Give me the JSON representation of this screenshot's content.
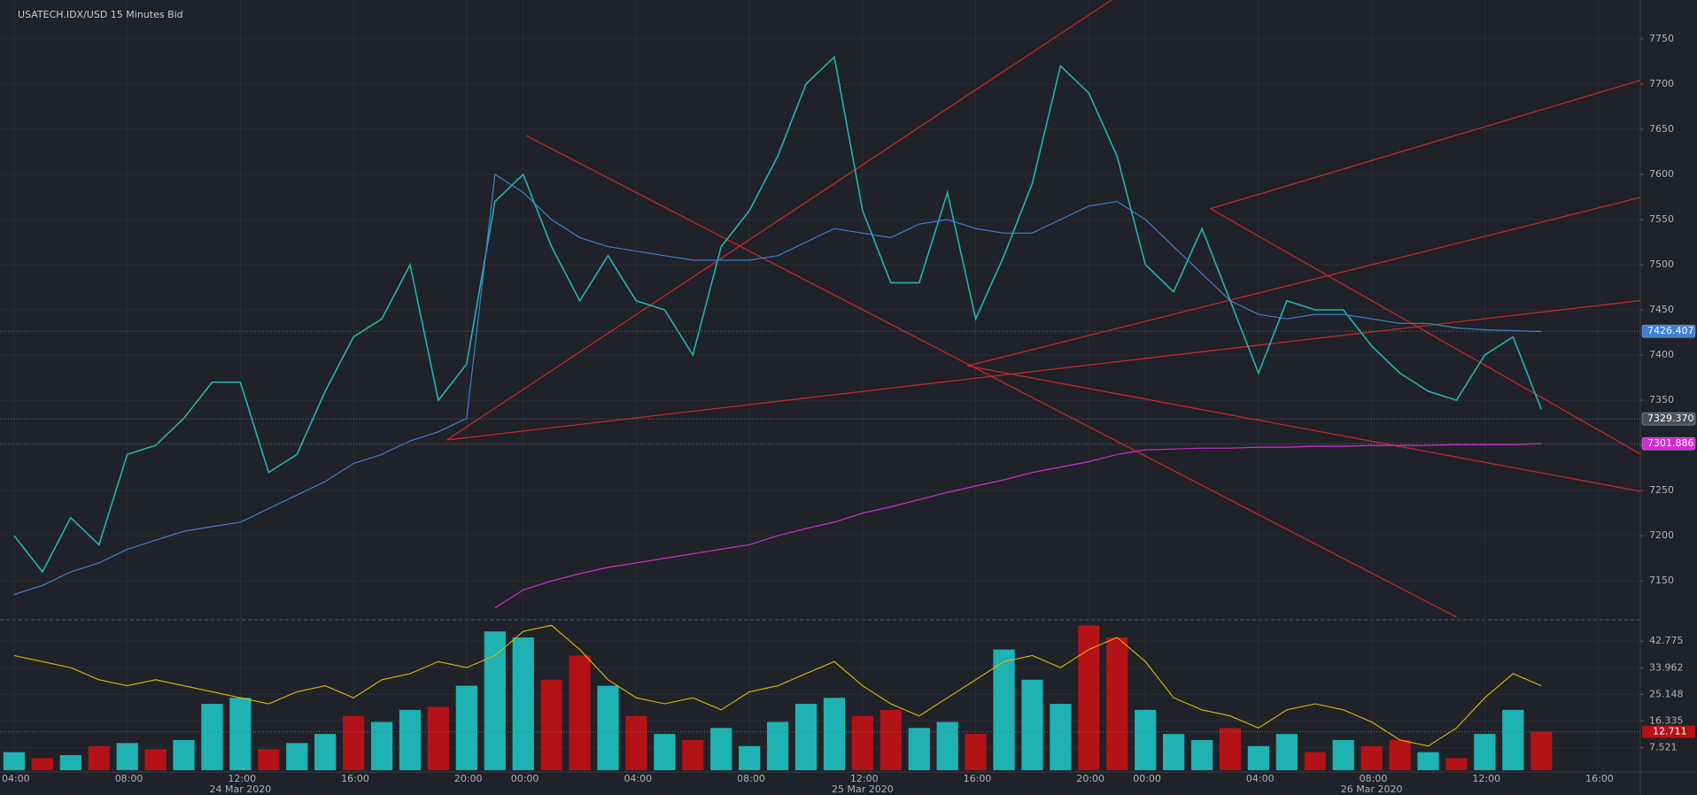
{
  "chart_data": [
    {
      "type": "line",
      "title": "USATECH.IDX/USD  15 Minutes Bid",
      "categories": [
        "04:00",
        null,
        null,
        null,
        "08:00",
        null,
        null,
        null,
        "12:00",
        null,
        null,
        null,
        "16:00",
        null,
        null,
        null,
        "20:00",
        null,
        "00:00",
        null,
        null,
        null,
        "04:00",
        null,
        null,
        null,
        "08:00",
        null,
        null,
        null,
        "12:00",
        null,
        null,
        null,
        "16:00",
        null,
        null,
        null,
        "20:00",
        null,
        "00:00",
        null,
        null,
        null,
        "04:00",
        null,
        null,
        null,
        "08:00",
        null,
        null,
        null,
        "12:00",
        null,
        null,
        null,
        "16:00"
      ],
      "date_labels": [
        null,
        null,
        null,
        null,
        null,
        null,
        null,
        null,
        "24 Mar 2020",
        null,
        null,
        null,
        null,
        null,
        null,
        null,
        null,
        null,
        null,
        null,
        null,
        null,
        null,
        null,
        null,
        null,
        null,
        null,
        null,
        null,
        "25 Mar 2020",
        null,
        null,
        null,
        null,
        null,
        null,
        null,
        null,
        null,
        null,
        null,
        null,
        null,
        null,
        null,
        null,
        null,
        "26 Mar 2020",
        null,
        null,
        null,
        null,
        null,
        null,
        null,
        null
      ],
      "series": [
        {
          "color": "#22b4b0",
          "values": [
            7200,
            7160,
            7220,
            7190,
            7290,
            7300,
            7330,
            7370,
            7370,
            7270,
            7290,
            7360,
            7420,
            7440,
            7500,
            7350,
            7390,
            7570,
            7600,
            7520,
            7460,
            7510,
            7460,
            7450,
            7400,
            7520,
            7560,
            7620,
            7700,
            7730,
            7560,
            7480,
            7480,
            7580,
            7440,
            7510,
            7590,
            7720,
            7690,
            7620,
            7500,
            7470,
            7540,
            7460,
            7380,
            7460,
            7450,
            7450,
            7410,
            7380,
            7360,
            7350,
            7400,
            7420,
            7340,
            null,
            null
          ]
        },
        {
          "color": "#3f7fd6",
          "values": [
            7135,
            7145,
            7160,
            7170,
            7185,
            7195,
            7205,
            7210,
            7215,
            7230,
            7245,
            7260,
            7280,
            7290,
            7305,
            7315,
            7330,
            7600,
            7580,
            7550,
            7530,
            7520,
            7515,
            7510,
            7505,
            7505,
            7505,
            7510,
            7525,
            7540,
            7535,
            7530,
            7545,
            7550,
            7540,
            7535,
            7535,
            7550,
            7565,
            7570,
            7550,
            7520,
            7490,
            7460,
            7445,
            7440,
            7445,
            7445,
            7440,
            7435,
            7435,
            7430,
            7428,
            7427,
            7426,
            null,
            null
          ]
        },
        {
          "color": "#d42bd4",
          "values": [
            null,
            null,
            null,
            null,
            null,
            null,
            null,
            null,
            null,
            null,
            null,
            null,
            null,
            null,
            null,
            null,
            null,
            7120,
            7140,
            7150,
            7158,
            7165,
            7170,
            7175,
            7180,
            7185,
            7190,
            7200,
            7208,
            7215,
            7225,
            7232,
            7240,
            7248,
            7255,
            7262,
            7270,
            7276,
            7282,
            7290,
            7295,
            7296,
            7297,
            7297,
            7298,
            7298,
            7299,
            7299,
            7300,
            7300,
            7300,
            7301,
            7301,
            7301,
            7302,
            null,
            null
          ]
        }
      ],
      "trendlines": {
        "color": "#c62828",
        "lines": [
          {
            "x": [
              15.3,
              38.8
            ],
            "y": [
              7306,
              7793
            ]
          },
          {
            "x": [
              15.3,
              57.7
            ],
            "y": [
              7306,
              7461
            ]
          },
          {
            "x": [
              33.7,
              57.7
            ],
            "y": [
              7388,
              7576
            ]
          },
          {
            "x": [
              42.3,
              57.7
            ],
            "y": [
              7562,
              7706
            ]
          },
          {
            "x": [
              18.1,
              51
            ],
            "y": [
              7643,
              7110
            ]
          },
          {
            "x": [
              33.7,
              57.7
            ],
            "y": [
              7388,
              7248
            ]
          },
          {
            "x": [
              42.3,
              57.7
            ],
            "y": [
              7562,
              7287
            ]
          }
        ]
      },
      "markers": [
        {
          "value": 7426.407,
          "color": "#3f7fd6"
        },
        {
          "value": 7329.37,
          "label": "7329.370",
          "color": "#4a4f58"
        },
        {
          "value": 7301.886,
          "color": "#d42bd4"
        }
      ],
      "ylim": [
        7109,
        7793
      ],
      "yticks": [
        7150,
        7200,
        7250,
        7300,
        7350,
        7400,
        7450,
        7500,
        7550,
        7600,
        7650,
        7700,
        7750
      ],
      "grid": true
    },
    {
      "type": "bar",
      "values": [
        6,
        4,
        5,
        8,
        9,
        7,
        10,
        22,
        24,
        7,
        9,
        12,
        18,
        16,
        20,
        21,
        28,
        46,
        44,
        30,
        38,
        28,
        18,
        12,
        10,
        14,
        8,
        16,
        22,
        24,
        18,
        20,
        14,
        16,
        12,
        40,
        30,
        22,
        48,
        44,
        20,
        12,
        10,
        14,
        8,
        12,
        6,
        10,
        8,
        10,
        6,
        4,
        12,
        20,
        12.711,
        null,
        null
      ],
      "colors": [
        "#1fb2b2",
        "#b31217",
        "#1fb2b2",
        "#b31217",
        "#1fb2b2",
        "#b31217",
        "#1fb2b2",
        "#1fb2b2",
        "#1fb2b2",
        "#b31217",
        "#1fb2b2",
        "#1fb2b2",
        "#b31217",
        "#1fb2b2",
        "#1fb2b2",
        "#b31217",
        "#1fb2b2",
        "#1fb2b2",
        "#1fb2b2",
        "#b31217",
        "#b31217",
        "#1fb2b2",
        "#b31217",
        "#1fb2b2",
        "#b31217",
        "#1fb2b2",
        "#1fb2b2",
        "#1fb2b2",
        "#1fb2b2",
        "#1fb2b2",
        "#b31217",
        "#b31217",
        "#1fb2b2",
        "#1fb2b2",
        "#b31217",
        "#1fb2b2",
        "#1fb2b2",
        "#1fb2b2",
        "#b31217",
        "#b31217",
        "#1fb2b2",
        "#1fb2b2",
        "#1fb2b2",
        "#b31217",
        "#1fb2b2",
        "#1fb2b2",
        "#b31217",
        "#1fb2b2",
        "#b31217",
        "#b31217",
        "#1fb2b2",
        "#b31217",
        "#1fb2b2",
        "#1fb2b2",
        "#b31217",
        null,
        null
      ],
      "line": {
        "color": "#e5b800",
        "values": [
          38,
          36,
          34,
          30,
          28,
          30,
          28,
          26,
          24,
          22,
          26,
          28,
          24,
          30,
          32,
          36,
          34,
          38,
          46,
          48,
          40,
          30,
          24,
          22,
          24,
          20,
          26,
          28,
          32,
          36,
          28,
          22,
          18,
          24,
          30,
          36,
          38,
          34,
          40,
          44,
          36,
          24,
          20,
          18,
          14,
          20,
          22,
          20,
          16,
          10,
          8,
          14,
          24,
          32,
          28,
          null,
          null
        ]
      },
      "marker": {
        "value": 12.711,
        "color": "#b31217"
      },
      "ylim": [
        0,
        49
      ],
      "yticks": [
        7.521,
        16.335,
        25.148,
        33.962,
        42.775
      ],
      "grid": true
    }
  ]
}
